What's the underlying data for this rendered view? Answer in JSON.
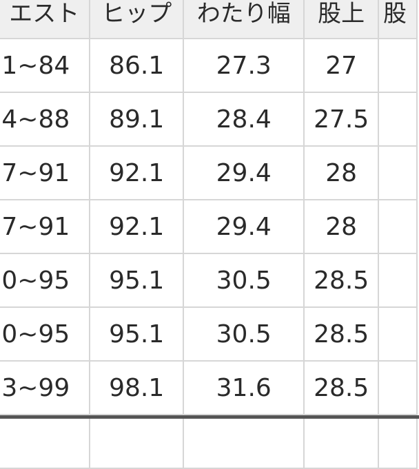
{
  "table": {
    "headers": [
      "エスト",
      "ヒップ",
      "わたり幅",
      "股上",
      "股"
    ],
    "rows": [
      [
        "1~84",
        "86.1",
        "27.3",
        "27",
        ""
      ],
      [
        "4~88",
        "89.1",
        "28.4",
        "27.5",
        ""
      ],
      [
        "7~91",
        "92.1",
        "29.4",
        "28",
        ""
      ],
      [
        "7~91",
        "92.1",
        "29.4",
        "28",
        ""
      ],
      [
        "0~95",
        "95.1",
        "30.5",
        "28.5",
        ""
      ],
      [
        "0~95",
        "95.1",
        "30.5",
        "28.5",
        ""
      ],
      [
        "3~99",
        "98.1",
        "31.6",
        "28.5",
        ""
      ]
    ]
  }
}
